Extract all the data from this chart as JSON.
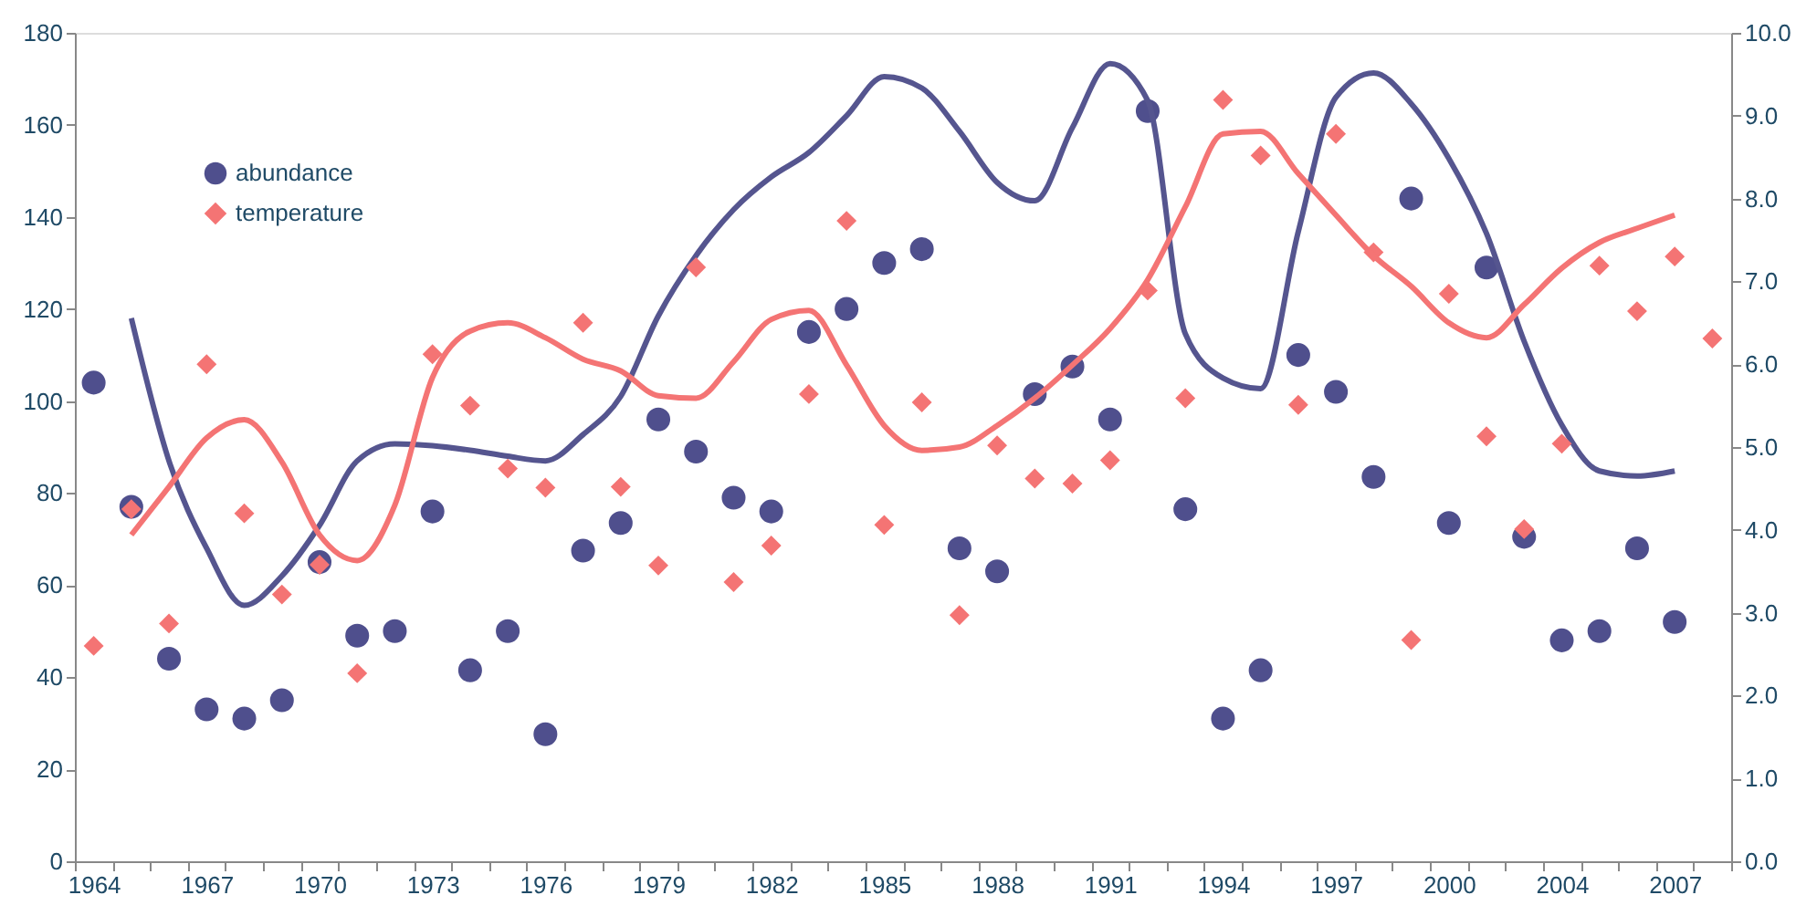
{
  "chart_data": {
    "type": "scatter",
    "categories": [
      "1964",
      null,
      null,
      "1967",
      null,
      null,
      "1970",
      null,
      null,
      "1973",
      null,
      null,
      "1976",
      null,
      null,
      "1979",
      null,
      null,
      "1982",
      null,
      null,
      "1985",
      null,
      null,
      "1988",
      null,
      null,
      "1991",
      null,
      null,
      "1994",
      null,
      null,
      "1997",
      null,
      null,
      "2000",
      null,
      null,
      "2004",
      null,
      null,
      "2007",
      null
    ],
    "ylim": [
      0,
      180
    ],
    "yticks": [
      0,
      20,
      40,
      60,
      80,
      100,
      120,
      140,
      160,
      180
    ],
    "y2lim": [
      0,
      10
    ],
    "y2ticks": [
      {
        "value": 0,
        "label": "0.0"
      },
      {
        "value": 1,
        "label": "1.0"
      },
      {
        "value": 2,
        "label": "2.0"
      },
      {
        "value": 3,
        "label": "3.0"
      },
      {
        "value": 4,
        "label": "4.0"
      },
      {
        "value": 5,
        "label": "5.0"
      },
      {
        "value": 6,
        "label": "6.0"
      },
      {
        "value": 7,
        "label": "7.0"
      },
      {
        "value": 8,
        "label": "8.0"
      },
      {
        "value": 9,
        "label": "9.0"
      },
      {
        "value": 10,
        "label": "10.0"
      }
    ],
    "grid": false,
    "legend": "top left",
    "series": [
      {
        "name": "abundance",
        "marker": "circle",
        "color": "#4f4f8d",
        "values": [
          104,
          77,
          44,
          33,
          31,
          35,
          65,
          49,
          50,
          76,
          41.5,
          50,
          27.6,
          67.5,
          73.5,
          96,
          89,
          79,
          76,
          115,
          120,
          130,
          133,
          68,
          63,
          101.5,
          107.5,
          96,
          163,
          76.5,
          31,
          41.5,
          110,
          102,
          83.5,
          144,
          73.5,
          129,
          70.5,
          48,
          50,
          68,
          52,
          null
        ]
      },
      {
        "name": "temperature",
        "marker": "diamond",
        "axis": "y2",
        "color": "#f47474",
        "values": [
          2.6,
          4.25,
          2.87,
          6.0,
          4.2,
          3.22,
          3.58,
          2.27,
          null,
          6.12,
          5.5,
          4.74,
          4.51,
          6.5,
          4.52,
          3.57,
          7.17,
          3.37,
          3.81,
          5.64,
          7.73,
          4.06,
          5.54,
          2.97,
          5.02,
          4.62,
          4.56,
          4.84,
          6.89,
          5.59,
          9.19,
          8.52,
          5.51,
          8.78,
          7.35,
          2.67,
          6.85,
          5.13,
          4.01,
          5.04,
          7.19,
          6.64,
          7.3,
          6.31
        ]
      },
      {
        "type": "line",
        "color": "#55558f",
        "values": [
          null,
          118,
          87,
          68,
          55.6,
          62,
          73,
          87,
          90.7,
          90.3,
          89.3,
          88,
          87,
          92.7,
          101,
          118.5,
          131.6,
          141.6,
          148.7,
          154,
          162,
          170.5,
          168,
          158.6,
          147.5,
          143.5,
          159.4,
          173.3,
          165.3,
          114.6,
          105,
          102.7,
          136.8,
          166,
          171.3,
          164.6,
          152.7,
          136.4,
          113,
          94.8,
          84.8,
          83.7,
          84.8,
          null
        ]
      },
      {
        "type": "line",
        "axis": "y2",
        "color": "#f47474",
        "values": [
          null,
          3.94,
          4.52,
          5.11,
          5.33,
          4.82,
          3.94,
          3.63,
          4.3,
          5.84,
          6.4,
          6.5,
          6.32,
          6.06,
          5.92,
          5.62,
          5.59,
          6.03,
          6.54,
          6.65,
          5.99,
          5.26,
          4.96,
          5.0,
          5.26,
          5.59,
          5.99,
          6.43,
          7.02,
          7.9,
          8.78,
          8.81,
          8.3,
          7.8,
          7.31,
          6.94,
          6.5,
          6.32,
          6.72,
          7.16,
          7.47,
          7.64,
          7.8,
          null
        ]
      }
    ]
  }
}
